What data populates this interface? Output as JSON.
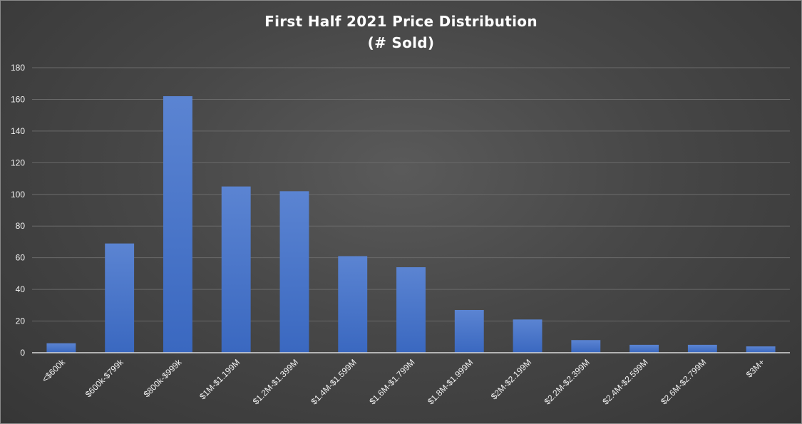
{
  "chart_data": {
    "type": "bar",
    "title": [
      "First Half 2021 Price Distribution",
      "(# Sold)"
    ],
    "xlabel": "",
    "ylabel": "",
    "categories": [
      "<$600k",
      "$600k-$799k",
      "$800k-$999k",
      "$1M-$1.199M",
      "$1.2M-$1.399M",
      "$1.4M-$1.599M",
      "$1.6M-$1.799M",
      "$1.8M-$1.999M",
      "$2M-$2.199M",
      "$2.2M-$2.399M",
      "$2.4M-$2.599M",
      "$2.6M-$2.799M",
      "$3M+"
    ],
    "values": [
      6,
      69,
      162,
      105,
      102,
      61,
      54,
      27,
      21,
      8,
      5,
      5,
      4
    ],
    "ylim": [
      0,
      180
    ],
    "yticks": [
      0,
      20,
      40,
      60,
      80,
      100,
      120,
      140,
      160,
      180
    ],
    "grid": true,
    "legend": "none",
    "colors": {
      "bar": "#4472c4",
      "bar_light": "#5b84d2",
      "background": "#404040",
      "grid": "#6a6a6a",
      "text": "#ffffff"
    }
  }
}
